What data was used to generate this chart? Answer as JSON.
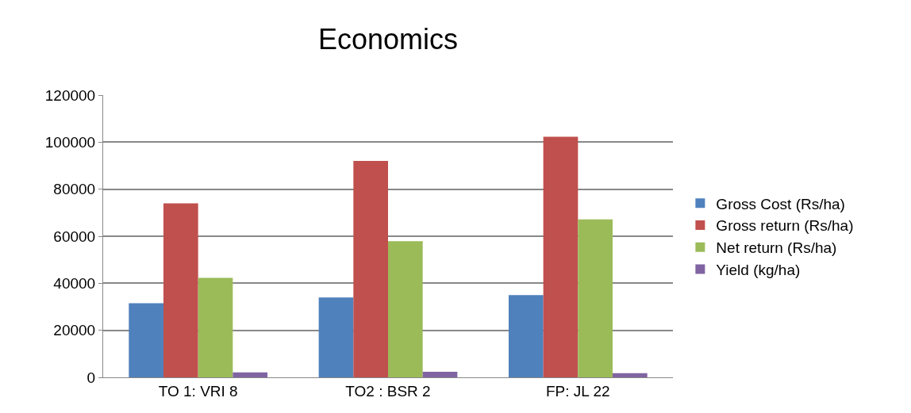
{
  "chart_data": {
    "type": "bar",
    "title": "Economics",
    "categories": [
      "TO 1: VRI 8",
      "TO2 : BSR 2",
      "FP: JL 22"
    ],
    "series": [
      {
        "name": "Gross Cost (Rs/ha)",
        "color": "#4f81bd",
        "values": [
          31500,
          34000,
          35000
        ]
      },
      {
        "name": "Gross return (Rs/ha)",
        "color": "#c0504d",
        "values": [
          74000,
          92000,
          102300
        ]
      },
      {
        "name": "Net return (Rs/ha)",
        "color": "#9bbb59",
        "values": [
          42300,
          57900,
          67200
        ]
      },
      {
        "name": "Yield (kg/ha)",
        "color": "#8064a2",
        "values": [
          2100,
          2400,
          1800
        ]
      }
    ],
    "ylim": [
      0,
      120000
    ],
    "yticks": [
      0,
      20000,
      40000,
      60000,
      80000,
      100000,
      120000
    ],
    "grid": "y",
    "legend": "right"
  }
}
